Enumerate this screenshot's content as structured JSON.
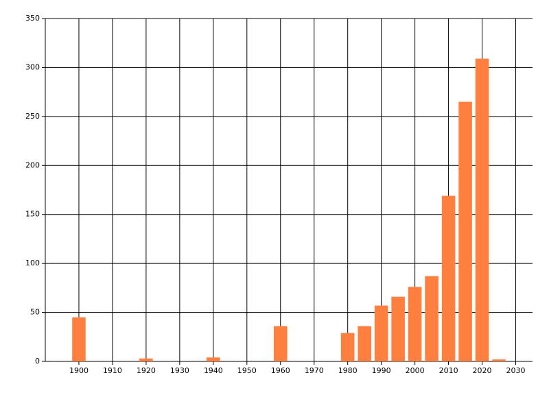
{
  "chart_data": {
    "type": "bar",
    "x": [
      1900,
      1920,
      1940,
      1960,
      1980,
      1985,
      1990,
      1995,
      2000,
      2005,
      2010,
      2015,
      2020,
      2025
    ],
    "values": [
      45,
      3,
      4,
      36,
      29,
      36,
      57,
      66,
      76,
      87,
      169,
      265,
      309,
      2
    ],
    "color": "#ff7f3f",
    "xlim": [
      1890,
      2035
    ],
    "xticks": [
      1900,
      1910,
      1920,
      1930,
      1940,
      1950,
      1960,
      1970,
      1980,
      1990,
      2000,
      2010,
      2020,
      2030
    ],
    "ylim": [
      0,
      350
    ],
    "yticks": [
      0,
      50,
      100,
      150,
      200,
      250,
      300,
      350
    ],
    "grid": true
  }
}
